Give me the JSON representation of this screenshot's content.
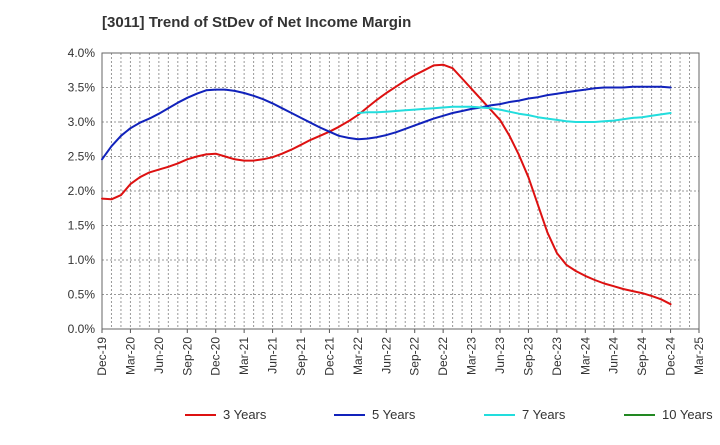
{
  "chart_data": {
    "type": "line",
    "title": "[3011]  Trend of StDev of Net Income Margin",
    "xlabel": "",
    "ylabel": "",
    "x_ticks": [
      "Dec-19",
      "Mar-20",
      "Jun-20",
      "Sep-20",
      "Dec-20",
      "Mar-21",
      "Jun-21",
      "Sep-21",
      "Dec-21",
      "Mar-22",
      "Jun-22",
      "Sep-22",
      "Dec-22",
      "Mar-23",
      "Jun-23",
      "Sep-23",
      "Dec-23",
      "Mar-24",
      "Jun-24",
      "Sep-24",
      "Dec-24",
      "Mar-25"
    ],
    "y_ticks": [
      "0.0%",
      "0.5%",
      "1.0%",
      "1.5%",
      "2.0%",
      "2.5%",
      "3.0%",
      "3.5%",
      "4.0%"
    ],
    "ylim": [
      0,
      4.0
    ],
    "y_unit": "%",
    "grid": true,
    "legend_position": "bottom",
    "series": [
      {
        "name": "3 Years",
        "color": "#dd1111",
        "points": [
          [
            "Dec-19",
            1.89
          ],
          [
            "Jan-20",
            1.88
          ],
          [
            "Feb-20",
            1.94
          ],
          [
            "Mar-20",
            2.1
          ],
          [
            "Apr-20",
            2.2
          ],
          [
            "May-20",
            2.27
          ],
          [
            "Jun-20",
            2.31
          ],
          [
            "Jul-20",
            2.35
          ],
          [
            "Aug-20",
            2.4
          ],
          [
            "Sep-20",
            2.46
          ],
          [
            "Oct-20",
            2.5
          ],
          [
            "Nov-20",
            2.53
          ],
          [
            "Dec-20",
            2.54
          ],
          [
            "Jan-21",
            2.5
          ],
          [
            "Feb-21",
            2.46
          ],
          [
            "Mar-21",
            2.44
          ],
          [
            "Apr-21",
            2.44
          ],
          [
            "May-21",
            2.46
          ],
          [
            "Jun-21",
            2.49
          ],
          [
            "Jul-21",
            2.54
          ],
          [
            "Aug-21",
            2.6
          ],
          [
            "Sep-21",
            2.67
          ],
          [
            "Oct-21",
            2.74
          ],
          [
            "Nov-21",
            2.8
          ],
          [
            "Dec-21",
            2.86
          ],
          [
            "Jan-22",
            2.93
          ],
          [
            "Feb-22",
            3.01
          ],
          [
            "Mar-22",
            3.1
          ],
          [
            "Apr-22",
            3.21
          ],
          [
            "May-22",
            3.32
          ],
          [
            "Jun-22",
            3.42
          ],
          [
            "Jul-22",
            3.51
          ],
          [
            "Aug-22",
            3.6
          ],
          [
            "Sep-22",
            3.68
          ],
          [
            "Oct-22",
            3.75
          ],
          [
            "Nov-22",
            3.82
          ],
          [
            "Dec-22",
            3.83
          ],
          [
            "Jan-23",
            3.78
          ],
          [
            "Feb-23",
            3.63
          ],
          [
            "Mar-23",
            3.48
          ],
          [
            "Apr-23",
            3.33
          ],
          [
            "May-23",
            3.18
          ],
          [
            "Jun-23",
            3.03
          ],
          [
            "Jul-23",
            2.8
          ],
          [
            "Aug-23",
            2.52
          ],
          [
            "Sep-23",
            2.2
          ],
          [
            "Oct-23",
            1.8
          ],
          [
            "Nov-23",
            1.4
          ],
          [
            "Dec-23",
            1.1
          ],
          [
            "Jan-24",
            0.93
          ],
          [
            "Feb-24",
            0.84
          ],
          [
            "Mar-24",
            0.77
          ],
          [
            "Apr-24",
            0.71
          ],
          [
            "May-24",
            0.66
          ],
          [
            "Jun-24",
            0.62
          ],
          [
            "Jul-24",
            0.58
          ],
          [
            "Aug-24",
            0.55
          ],
          [
            "Sep-24",
            0.52
          ],
          [
            "Oct-24",
            0.48
          ],
          [
            "Nov-24",
            0.43
          ],
          [
            "Dec-24",
            0.36
          ]
        ]
      },
      {
        "name": "5 Years",
        "color": "#1122bb",
        "points": [
          [
            "Dec-19",
            2.46
          ],
          [
            "Jan-20",
            2.65
          ],
          [
            "Feb-20",
            2.8
          ],
          [
            "Mar-20",
            2.91
          ],
          [
            "Apr-20",
            2.99
          ],
          [
            "May-20",
            3.05
          ],
          [
            "Jun-20",
            3.12
          ],
          [
            "Jul-20",
            3.2
          ],
          [
            "Aug-20",
            3.28
          ],
          [
            "Sep-20",
            3.35
          ],
          [
            "Oct-20",
            3.41
          ],
          [
            "Nov-20",
            3.46
          ],
          [
            "Dec-20",
            3.47
          ],
          [
            "Jan-21",
            3.47
          ],
          [
            "Feb-21",
            3.45
          ],
          [
            "Mar-21",
            3.42
          ],
          [
            "Apr-21",
            3.38
          ],
          [
            "May-21",
            3.33
          ],
          [
            "Jun-21",
            3.27
          ],
          [
            "Jul-21",
            3.2
          ],
          [
            "Aug-21",
            3.13
          ],
          [
            "Sep-21",
            3.06
          ],
          [
            "Oct-21",
            2.99
          ],
          [
            "Nov-21",
            2.92
          ],
          [
            "Dec-21",
            2.86
          ],
          [
            "Jan-22",
            2.8
          ],
          [
            "Feb-22",
            2.77
          ],
          [
            "Mar-22",
            2.75
          ],
          [
            "Apr-22",
            2.76
          ],
          [
            "May-22",
            2.78
          ],
          [
            "Jun-22",
            2.81
          ],
          [
            "Jul-22",
            2.85
          ],
          [
            "Aug-22",
            2.9
          ],
          [
            "Sep-22",
            2.95
          ],
          [
            "Oct-22",
            3.0
          ],
          [
            "Nov-22",
            3.05
          ],
          [
            "Dec-22",
            3.09
          ],
          [
            "Jan-23",
            3.13
          ],
          [
            "Feb-23",
            3.16
          ],
          [
            "Mar-23",
            3.19
          ],
          [
            "Apr-23",
            3.21
          ],
          [
            "May-23",
            3.24
          ],
          [
            "Jun-23",
            3.26
          ],
          [
            "Jul-23",
            3.29
          ],
          [
            "Aug-23",
            3.31
          ],
          [
            "Sep-23",
            3.34
          ],
          [
            "Oct-23",
            3.36
          ],
          [
            "Nov-23",
            3.39
          ],
          [
            "Dec-23",
            3.41
          ],
          [
            "Jan-24",
            3.43
          ],
          [
            "Feb-24",
            3.45
          ],
          [
            "Mar-24",
            3.47
          ],
          [
            "Apr-24",
            3.49
          ],
          [
            "May-24",
            3.5
          ],
          [
            "Jun-24",
            3.5
          ],
          [
            "Jul-24",
            3.5
          ],
          [
            "Aug-24",
            3.51
          ],
          [
            "Sep-24",
            3.51
          ],
          [
            "Oct-24",
            3.51
          ],
          [
            "Nov-24",
            3.51
          ],
          [
            "Dec-24",
            3.5
          ]
        ]
      },
      {
        "name": "7 Years",
        "color": "#22dddd",
        "points": [
          [
            "Mar-22",
            3.13
          ],
          [
            "Apr-22",
            3.14
          ],
          [
            "May-22",
            3.14
          ],
          [
            "Jun-22",
            3.15
          ],
          [
            "Jul-22",
            3.16
          ],
          [
            "Aug-22",
            3.17
          ],
          [
            "Sep-22",
            3.18
          ],
          [
            "Oct-22",
            3.19
          ],
          [
            "Nov-22",
            3.2
          ],
          [
            "Dec-22",
            3.21
          ],
          [
            "Jan-23",
            3.22
          ],
          [
            "Feb-23",
            3.22
          ],
          [
            "Mar-23",
            3.22
          ],
          [
            "Apr-23",
            3.21
          ],
          [
            "May-23",
            3.2
          ],
          [
            "Jun-23",
            3.18
          ],
          [
            "Jul-23",
            3.15
          ],
          [
            "Aug-23",
            3.12
          ],
          [
            "Sep-23",
            3.1
          ],
          [
            "Oct-23",
            3.07
          ],
          [
            "Nov-23",
            3.05
          ],
          [
            "Dec-23",
            3.03
          ],
          [
            "Jan-24",
            3.01
          ],
          [
            "Feb-24",
            3.0
          ],
          [
            "Mar-24",
            3.0
          ],
          [
            "Apr-24",
            3.0
          ],
          [
            "May-24",
            3.01
          ],
          [
            "Jun-24",
            3.02
          ],
          [
            "Jul-24",
            3.04
          ],
          [
            "Aug-24",
            3.06
          ],
          [
            "Sep-24",
            3.07
          ],
          [
            "Oct-24",
            3.09
          ],
          [
            "Nov-24",
            3.11
          ],
          [
            "Dec-24",
            3.13
          ]
        ]
      },
      {
        "name": "10 Years",
        "color": "#228822",
        "points": []
      }
    ]
  }
}
